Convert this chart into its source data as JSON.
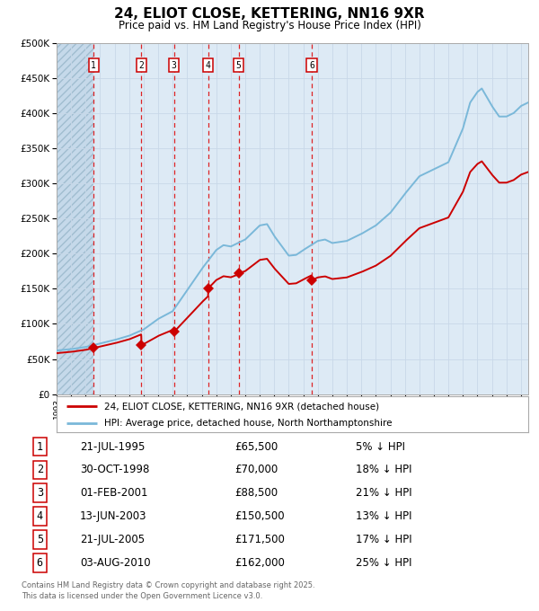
{
  "title": "24, ELIOT CLOSE, KETTERING, NN16 9XR",
  "subtitle": "Price paid vs. HM Land Registry's House Price Index (HPI)",
  "legend_line1": "24, ELIOT CLOSE, KETTERING, NN16 9XR (detached house)",
  "legend_line2": "HPI: Average price, detached house, North Northamptonshire",
  "footer": "Contains HM Land Registry data © Crown copyright and database right 2025.\nThis data is licensed under the Open Government Licence v3.0.",
  "hpi_color": "#7ab8d9",
  "price_color": "#cc0000",
  "marker_color": "#cc0000",
  "bg_color": "#ddeaf5",
  "grid_color": "#b8cfe0",
  "dashed_color": "#dd0000",
  "ylim": [
    0,
    500000
  ],
  "yticks": [
    0,
    50000,
    100000,
    150000,
    200000,
    250000,
    300000,
    350000,
    400000,
    450000,
    500000
  ],
  "sale_years": [
    1995.55,
    1998.83,
    2001.09,
    2003.45,
    2005.55,
    2010.59
  ],
  "sale_prices": [
    65500,
    70000,
    88500,
    150500,
    171500,
    162000
  ],
  "sale_labels": [
    "1",
    "2",
    "3",
    "4",
    "5",
    "6"
  ],
  "sale_date_strs": [
    "21-JUL-1995",
    "30-OCT-1998",
    "01-FEB-2001",
    "13-JUN-2003",
    "21-JUL-2005",
    "03-AUG-2010"
  ],
  "sale_price_strs": [
    "£65,500",
    "£70,000",
    "£88,500",
    "£150,500",
    "£171,500",
    "£162,000"
  ],
  "sale_pct_strs": [
    "5% ↓ HPI",
    "18% ↓ HPI",
    "21% ↓ HPI",
    "13% ↓ HPI",
    "17% ↓ HPI",
    "25% ↓ HPI"
  ],
  "xmin": 1993.0,
  "xmax": 2025.5
}
